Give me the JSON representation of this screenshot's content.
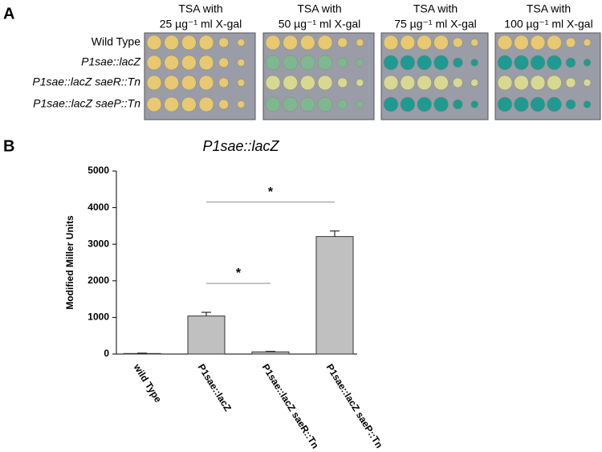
{
  "panel_a": {
    "label": "A",
    "headers": [
      [
        "TSA with",
        "25 µg⁻¹ ml X-gal"
      ],
      [
        "TSA with",
        "50 µg⁻¹ ml X-gal"
      ],
      [
        "TSA with",
        "75 µg⁻¹ ml X-gal"
      ],
      [
        "TSA with",
        "100 µg⁻¹ ml X-gal"
      ]
    ],
    "rows": [
      "Wild Type",
      "P1sae::lacZ",
      "P1sae::lacZ saeR::Tn",
      "P1sae::lacZ saeP::Tn"
    ]
  },
  "chart_data": {
    "type": "bar",
    "panel_label": "B",
    "title": "P1sae::lacZ",
    "y_label": "Modified Miller Units",
    "categories": [
      "wild Type",
      "P1sae::lacZ",
      "P1sae::lacZ saeR::Tn",
      "P1sae::lacZ saeP::Tn"
    ],
    "values": [
      15,
      1040,
      60,
      3210
    ],
    "errors": [
      10,
      100,
      10,
      150
    ],
    "color": "#c0c0c0",
    "ylim": [
      0,
      5000
    ],
    "yticks": [
      0,
      1000,
      2000,
      3000,
      4000,
      5000
    ],
    "significance": [
      {
        "label": "*",
        "between": [
          "P1sae::lacZ",
          "P1sae::lacZ saeR::Tn"
        ]
      },
      {
        "label": "*",
        "between": [
          "P1sae::lacZ",
          "P1sae::lacZ saeP::Tn"
        ]
      }
    ]
  }
}
